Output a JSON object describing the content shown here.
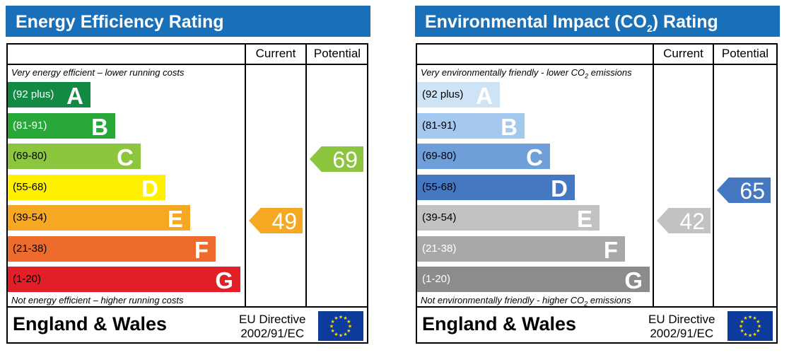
{
  "chart_data": [
    {
      "type": "bar",
      "title": "Energy Efficiency Rating",
      "columns": [
        "Current",
        "Potential"
      ],
      "top_note": "Very energy efficient – lower running costs",
      "bottom_note": "Not energy efficient – higher running costs",
      "bands": [
        {
          "letter": "A",
          "range": "(92 plus)",
          "color": "#138a44",
          "text_color": "#ffffff"
        },
        {
          "letter": "B",
          "range": "(81-91)",
          "color": "#27a839",
          "text_color": "#ffffff"
        },
        {
          "letter": "C",
          "range": "(69-80)",
          "color": "#8cc63e",
          "text_color": "#000000"
        },
        {
          "letter": "D",
          "range": "(55-68)",
          "color": "#fff000",
          "text_color": "#000000"
        },
        {
          "letter": "E",
          "range": "(39-54)",
          "color": "#f7a823",
          "text_color": "#000000"
        },
        {
          "letter": "F",
          "range": "(21-38)",
          "color": "#ee6b2e",
          "text_color": "#000000"
        },
        {
          "letter": "G",
          "range": "(1-20)",
          "color": "#e21f26",
          "text_color": "#000000"
        }
      ],
      "current": {
        "value": "49",
        "band": "E",
        "color": "#f7a823"
      },
      "potential": {
        "value": "69",
        "band": "C",
        "color": "#8cc63e"
      },
      "region": "England & Wales",
      "directive_line1": "EU Directive",
      "directive_line2": "2002/91/EC"
    },
    {
      "type": "bar",
      "title_main": "Environmental Impact (CO",
      "title_sub": "2",
      "title_end": ") Rating",
      "columns": [
        "Current",
        "Potential"
      ],
      "top_note_main": "Very environmentally friendly - lower CO",
      "top_note_sub": "2",
      "top_note_end": " emissions",
      "bottom_note_main": "Not environmentally friendly - higher CO",
      "bottom_note_sub": "2",
      "bottom_note_end": " emissions",
      "bands": [
        {
          "letter": "A",
          "range": "(92 plus)",
          "color": "#cfe3f7",
          "text_color": "#000000"
        },
        {
          "letter": "B",
          "range": "(81-91)",
          "color": "#a5c8ee",
          "text_color": "#000000"
        },
        {
          "letter": "C",
          "range": "(69-80)",
          "color": "#6f9fd8",
          "text_color": "#000000"
        },
        {
          "letter": "D",
          "range": "(55-68)",
          "color": "#4478c3",
          "text_color": "#000000"
        },
        {
          "letter": "E",
          "range": "(39-54)",
          "color": "#c2c2c2",
          "text_color": "#000000"
        },
        {
          "letter": "F",
          "range": "(21-38)",
          "color": "#a8a8a8",
          "text_color": "#ffffff"
        },
        {
          "letter": "G",
          "range": "(1-20)",
          "color": "#8c8c8c",
          "text_color": "#ffffff"
        }
      ],
      "current": {
        "value": "42",
        "band": "E",
        "color": "#c2c2c2"
      },
      "potential": {
        "value": "65",
        "band": "D",
        "color": "#4478c3"
      },
      "region": "England & Wales",
      "directive_line1": "EU Directive",
      "directive_line2": "2002/91/EC"
    }
  ],
  "icons": {
    "flag": "eu-flag-icon"
  }
}
